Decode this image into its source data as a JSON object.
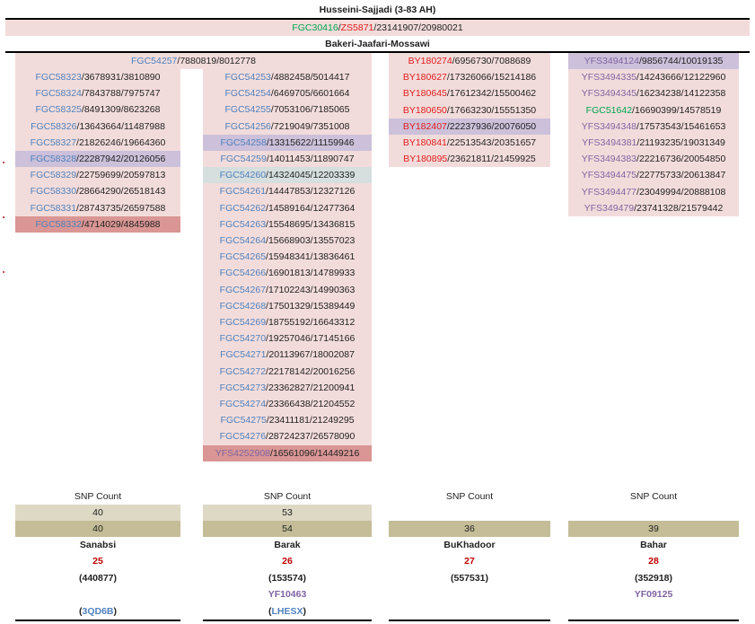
{
  "header": {
    "title": "Husseini-Sajjadi (3-83 AH)",
    "root_snp": "FGC30416",
    "root_alt": "ZS5871",
    "root_pos": "23141907/20980021",
    "branch_title": "Bakeri-Jaafari-Mossawi",
    "branch_snp": "FGC54257",
    "branch_pos": "7880819/8012778"
  },
  "columns": [
    {
      "name": "Sanabsi",
      "rows": [
        {
          "snp": "FGC58323",
          "pos": "3678931/3810890",
          "style": "pink",
          "snpColor": "blue"
        },
        {
          "snp": "FGC58324",
          "pos": "7843788/7975747",
          "style": "pink",
          "snpColor": "blue"
        },
        {
          "snp": "FGC58325",
          "pos": "8491309/8623268",
          "style": "pink",
          "snpColor": "blue"
        },
        {
          "snp": "FGC58326",
          "pos": "13643664/11487988",
          "style": "pink",
          "snpColor": "blue"
        },
        {
          "snp": "FGC58327",
          "pos": "21826246/19664360",
          "style": "pink",
          "snpColor": "blue"
        },
        {
          "snp": "FGC58328",
          "pos": "22287942/20126056",
          "style": "lav",
          "snpColor": "blue"
        },
        {
          "snp": "FGC58329",
          "pos": "22759699/20597813",
          "style": "pink",
          "snpColor": "blue"
        },
        {
          "snp": "FGC58330",
          "pos": "28664290/26518143",
          "style": "pink",
          "snpColor": "blue"
        },
        {
          "snp": "FGC58331",
          "pos": "28743735/26597588",
          "style": "pink",
          "snpColor": "blue"
        },
        {
          "snp": "FGC58332",
          "pos": "4714029/4845988",
          "style": "dred",
          "snpColor": "blue"
        }
      ],
      "snp_count_label": "SNP Count",
      "count1": "40",
      "count2": "40",
      "number": "25",
      "code": "(440877)",
      "sub_snp": "",
      "id_prefix": "(",
      "id": "3QD6B",
      "id_suffix": ")"
    },
    {
      "name": "Barak",
      "rows": [
        {
          "snp": "FGC54253",
          "pos": "4882458/5014417",
          "style": "pink",
          "snpColor": "blue"
        },
        {
          "snp": "FGC54254",
          "pos": "6469705/6601664",
          "style": "pink",
          "snpColor": "blue"
        },
        {
          "snp": "FGC54255",
          "pos": "7053106/7185065",
          "style": "pink",
          "snpColor": "blue"
        },
        {
          "snp": "FGC54256",
          "pos": "7219049/7351008",
          "style": "pink",
          "snpColor": "blue"
        },
        {
          "snp": "FGC54258",
          "pos": "13315622/11159946",
          "style": "lav",
          "snpColor": "blue"
        },
        {
          "snp": "FGC54259",
          "pos": "14011453/11890747",
          "style": "pink",
          "snpColor": "blue"
        },
        {
          "snp": "FGC54260",
          "pos": "14324045/12203339",
          "style": "grey",
          "snpColor": "blue"
        },
        {
          "snp": "FGC54261",
          "pos": "14447853/12327126",
          "style": "pink",
          "snpColor": "blue"
        },
        {
          "snp": "FGC54262",
          "pos": "14589164/12477364",
          "style": "pink",
          "snpColor": "blue"
        },
        {
          "snp": "FGC54263",
          "pos": "15548695/13436815",
          "style": "pink",
          "snpColor": "blue"
        },
        {
          "snp": "FGC54264",
          "pos": "15668903/13557023",
          "style": "pink",
          "snpColor": "blue"
        },
        {
          "snp": "FGC54265",
          "pos": "15948341/13836461",
          "style": "pink",
          "snpColor": "blue"
        },
        {
          "snp": "FGC54266",
          "pos": "16901813/14789933",
          "style": "pink",
          "snpColor": "blue"
        },
        {
          "snp": "FGC54267",
          "pos": "17102243/14990363",
          "style": "pink",
          "snpColor": "blue"
        },
        {
          "snp": "FGC54268",
          "pos": "17501329/15389449",
          "style": "pink",
          "snpColor": "blue"
        },
        {
          "snp": "FGC54269",
          "pos": "18755192/16643312",
          "style": "pink",
          "snpColor": "blue"
        },
        {
          "snp": "FGC54270",
          "pos": "19257046/17145166",
          "style": "pink",
          "snpColor": "blue"
        },
        {
          "snp": "FGC54271",
          "pos": "20113967/18002087",
          "style": "pink",
          "snpColor": "blue"
        },
        {
          "snp": "FGC54272",
          "pos": "22178142/20016256",
          "style": "pink",
          "snpColor": "blue"
        },
        {
          "snp": "FGC54273",
          "pos": "23362827/21200941",
          "style": "pink",
          "snpColor": "blue"
        },
        {
          "snp": "FGC54274",
          "pos": "23366438/21204552",
          "style": "pink",
          "snpColor": "blue"
        },
        {
          "snp": "FGC54275",
          "pos": "23411181/21249295",
          "style": "pink",
          "snpColor": "blue"
        },
        {
          "snp": "FGC54276",
          "pos": "28724237/26578090",
          "style": "pink",
          "snpColor": "blue"
        },
        {
          "snp": "YFS4252908",
          "pos": "16561096/14449216",
          "style": "dred",
          "snpColor": "purple"
        }
      ],
      "snp_count_label": "SNP Count",
      "count1": "53",
      "count2": "54",
      "number": "26",
      "code": "(153574)",
      "sub_snp": "YF10463",
      "id_prefix": "(",
      "id": "LHESX",
      "id_suffix": ")"
    },
    {
      "name": "BuKhadoor",
      "rows": [
        {
          "snp": "BY180274",
          "pos": "6956730/7088689",
          "style": "pink",
          "snpColor": "red"
        },
        {
          "snp": "BY180627",
          "pos": "17326066/15214186",
          "style": "pink",
          "snpColor": "red"
        },
        {
          "snp": "BY180645",
          "pos": "17612342/15500462",
          "style": "pink",
          "snpColor": "red"
        },
        {
          "snp": "BY180650",
          "pos": "17663230/15551350",
          "style": "pink",
          "snpColor": "red"
        },
        {
          "snp": "BY182407",
          "pos": "22237936/20076050",
          "style": "lav",
          "snpColor": "red"
        },
        {
          "snp": "BY180841",
          "pos": "22513543/20351657",
          "style": "pink",
          "snpColor": "red"
        },
        {
          "snp": "BY180895",
          "pos": "23621811/21459925",
          "style": "pink",
          "snpColor": "red"
        }
      ],
      "snp_count_label": "SNP Count",
      "count1": "",
      "count2": "36",
      "number": "27",
      "code": "(557531)",
      "sub_snp": "",
      "id_prefix": "",
      "id": "",
      "id_suffix": ""
    },
    {
      "name": "Bahar",
      "rows": [
        {
          "snp": "YFS3494124",
          "pos": "9856744/10019135",
          "style": "lav",
          "snpColor": "purple"
        },
        {
          "snp": "YFS3494335",
          "pos": "14243666/12122960",
          "style": "pink",
          "snpColor": "purple"
        },
        {
          "snp": "YFS3494345",
          "pos": "16234238/14122358",
          "style": "pink",
          "snpColor": "purple"
        },
        {
          "snp": "FGC51642",
          "pos": "16690399/14578519",
          "style": "pink",
          "snpColor": "green"
        },
        {
          "snp": "YFS3494348",
          "pos": "17573543/15461653",
          "style": "pink",
          "snpColor": "purple"
        },
        {
          "snp": "YFS3494381",
          "pos": "21193235/19031349",
          "style": "pink",
          "snpColor": "purple"
        },
        {
          "snp": "YFS3494383",
          "pos": "22216736/20054850",
          "style": "pink",
          "snpColor": "purple"
        },
        {
          "snp": "YFS3494475",
          "pos": "22775733/20613847",
          "style": "pink",
          "snpColor": "purple"
        },
        {
          "snp": "YFS3494477",
          "pos": "23049994/20888108",
          "style": "pink",
          "snpColor": "purple"
        },
        {
          "snp": "YFS349479",
          "pos": "23741328/21579442",
          "style": "pink",
          "snpColor": "purple"
        }
      ],
      "snp_count_label": "SNP Count",
      "count1": "",
      "count2": "39",
      "number": "28",
      "code": "(352918)",
      "sub_snp": "YF09125",
      "id_prefix": "",
      "id": "",
      "id_suffix": ""
    }
  ]
}
